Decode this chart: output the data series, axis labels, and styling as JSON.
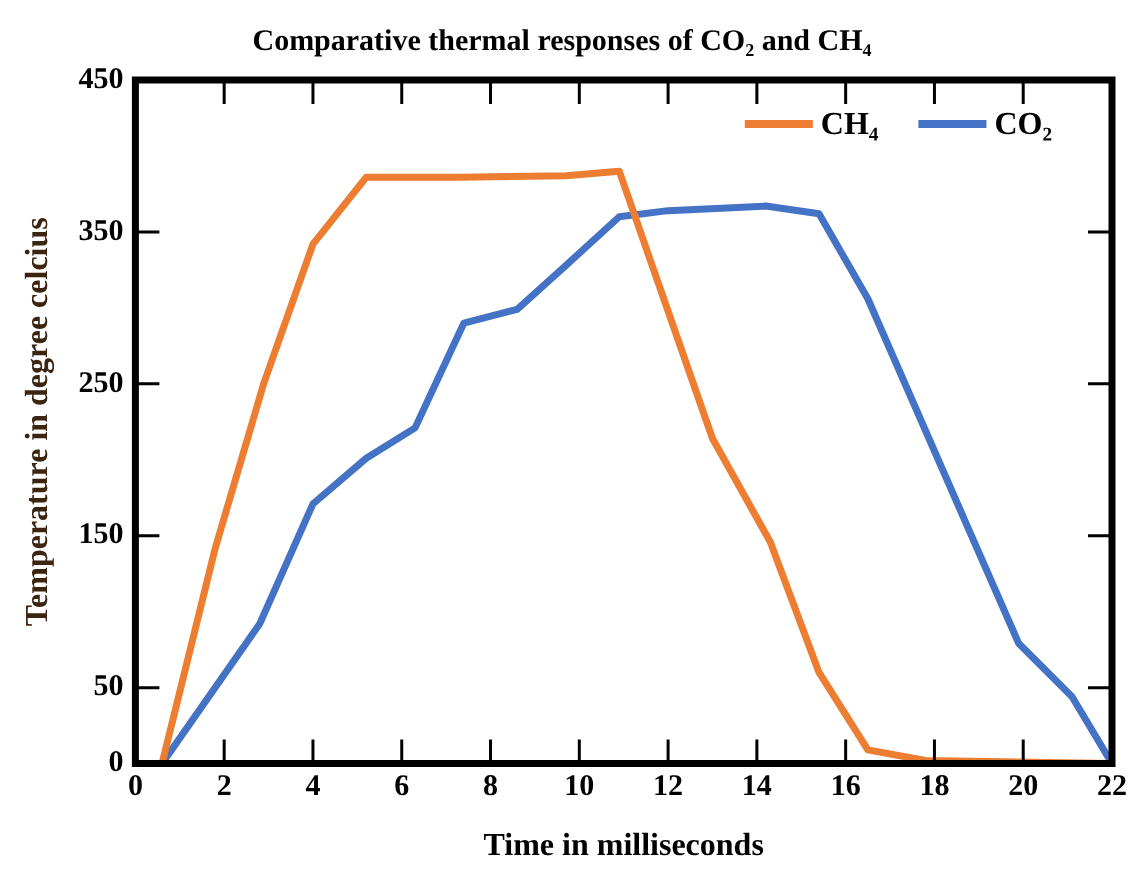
{
  "chart_data": {
    "type": "line",
    "title": "Comparative thermal responses of CO₂ and CH₄",
    "xlabel": "Time in milliseconds",
    "ylabel": "Temperature in degree celcius",
    "xlim": [
      0,
      22
    ],
    "xticks": [
      0,
      2,
      4,
      6,
      8,
      10,
      12,
      14,
      16,
      18,
      20,
      22
    ],
    "ylim": [
      0,
      450
    ],
    "yticks": [
      0,
      50,
      150,
      250,
      350,
      450
    ],
    "grid": false,
    "legend": "top right",
    "marker": "none",
    "line_style": "solid",
    "series": [
      {
        "name": "CH₄",
        "color": "#ed7d31",
        "x": [
          0.6,
          1.8,
          2.9,
          4.0,
          5.2,
          7.3,
          9.7,
          10.9,
          13.0,
          14.3,
          15.4,
          16.5,
          17.8,
          22
        ],
        "values": [
          0,
          142,
          251,
          342,
          386,
          386,
          387,
          390,
          214,
          146,
          60,
          9,
          2,
          0
        ]
      },
      {
        "name": "CO₂",
        "color": "#4472c4",
        "x": [
          0.6,
          2.8,
          4.0,
          5.2,
          6.3,
          7.4,
          8.6,
          9.7,
          10.9,
          12.0,
          14.2,
          15.4,
          16.5,
          18.7,
          19.9,
          21.1,
          22
        ],
        "values": [
          0,
          92,
          171,
          201,
          221,
          290,
          299,
          328,
          360,
          364,
          367,
          362,
          306,
          159,
          79,
          44,
          0
        ]
      }
    ]
  }
}
